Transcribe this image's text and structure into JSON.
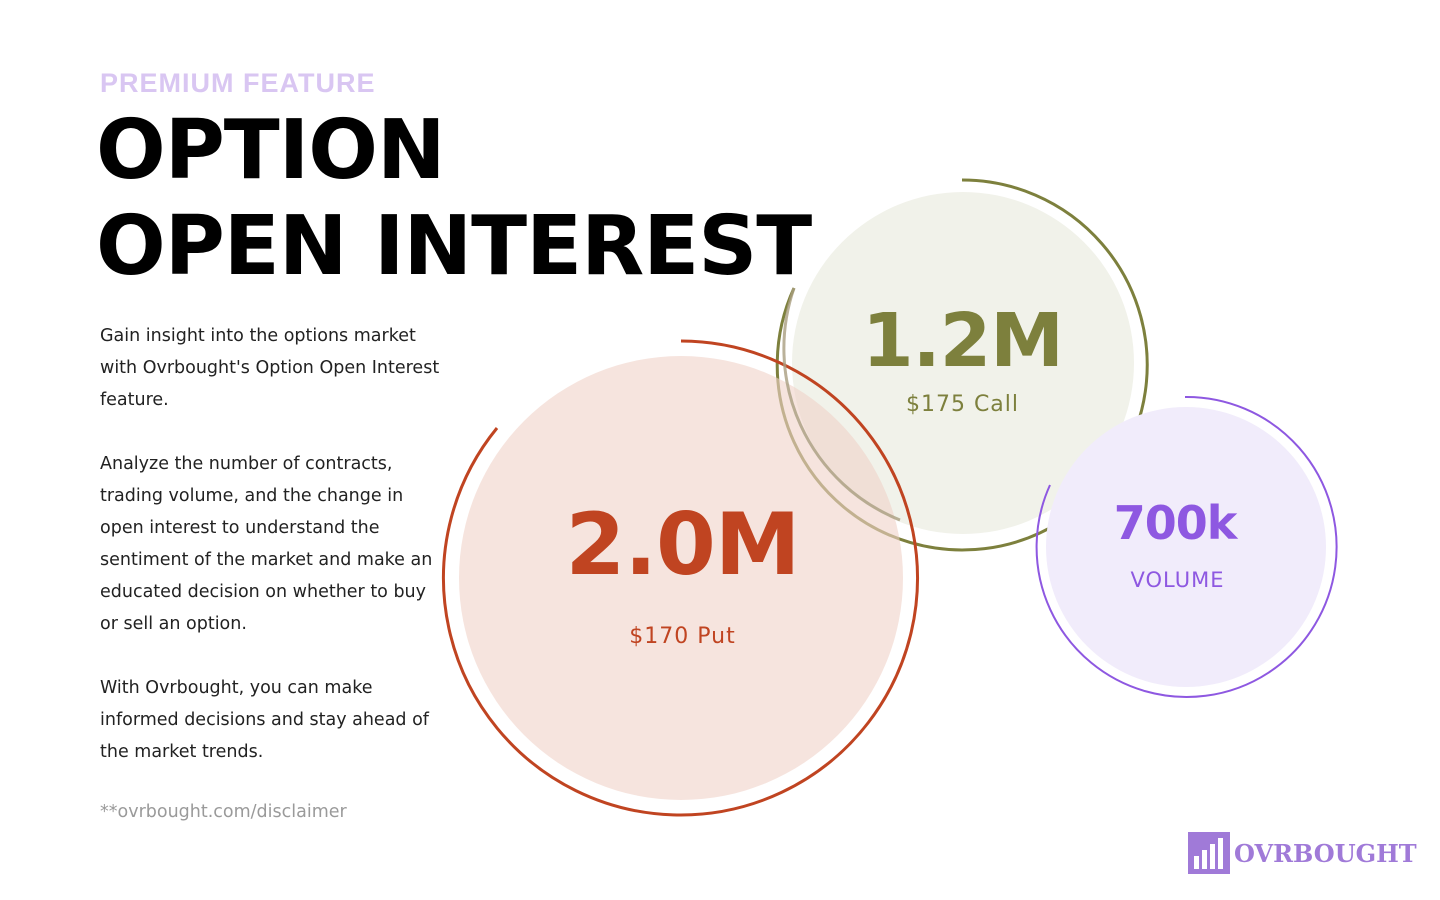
{
  "header": {
    "eyebrow": "PREMIUM FEATURE",
    "title_line1": "OPTION",
    "title_line2": "OPEN INTEREST"
  },
  "body": {
    "paragraph1": "Gain insight into the options market with Ovrbought's Option Open Interest feature.",
    "paragraph2": "Analyze the number of contracts, trading volume, and the change in open interest to understand the sentiment of the market and make an educated decision on whether to buy or sell an option.",
    "paragraph3": "With Ovrbought, you can make informed decisions and stay ahead of the market trends.",
    "disclaimer": "**ovrbought.com/disclaimer"
  },
  "stats": {
    "put": {
      "value": "2.0M",
      "label": "$170 Put",
      "color": "#c04421",
      "fill": "#f5e3de"
    },
    "call": {
      "value": "1.2M",
      "label": "$175 Call",
      "color": "#7d803d",
      "fill": "#f1f2ea"
    },
    "volume": {
      "value": "700k",
      "label": "VOLUME",
      "color": "#8e58e1",
      "fill": "#f1ecfb"
    }
  },
  "brand": {
    "name": "OVRBOUGHT",
    "icon": "bar-chart-logo-icon",
    "color": "#a07ad8"
  }
}
